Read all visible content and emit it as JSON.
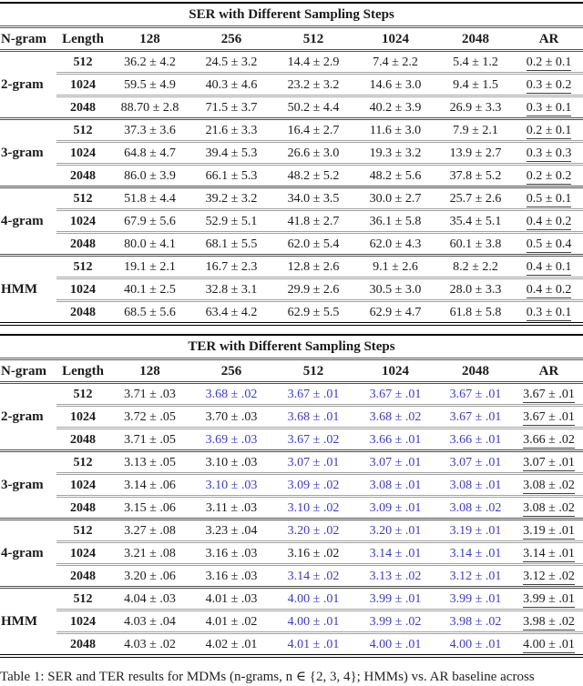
{
  "colors": {
    "highlight_blue": "#3a3ac8",
    "text": "#1b1b1b"
  },
  "caption": "Table 1: SER and TER results for MDMs (n-grams, n ∈ {2, 3, 4}; HMMs) vs. AR baseline across",
  "tables": [
    {
      "title": "SER with Different Sampling Steps",
      "columns": [
        "N-gram",
        "Length",
        "128",
        "256",
        "512",
        "1024",
        "2048",
        "AR"
      ],
      "groups": [
        {
          "label": "2-gram",
          "rows": [
            {
              "len": "512",
              "values": [
                "36.2 ± 4.2",
                "24.5 ± 3.2",
                "14.4 ± 2.9",
                "7.4 ± 2.2",
                "5.4 ± 1.2"
              ],
              "hl": [
                0,
                0,
                0,
                0,
                0
              ],
              "ar": "0.2 ± 0.1"
            },
            {
              "len": "1024",
              "values": [
                "59.5 ± 4.9",
                "40.3 ± 4.6",
                "23.2 ± 3.2",
                "14.6 ± 3.0",
                "9.4 ± 1.5"
              ],
              "hl": [
                0,
                0,
                0,
                0,
                0
              ],
              "ar": "0.3 ± 0.2"
            },
            {
              "len": "2048",
              "values": [
                "88.70 ± 2.8",
                "71.5 ± 3.7",
                "50.2 ± 4.4",
                "40.2 ± 3.9",
                "26.9 ± 3.3"
              ],
              "hl": [
                0,
                0,
                0,
                0,
                0
              ],
              "ar": "0.3 ± 0.1"
            }
          ]
        },
        {
          "label": "3-gram",
          "rows": [
            {
              "len": "512",
              "values": [
                "37.3 ± 3.6",
                "21.6 ± 3.3",
                "16.4 ± 2.7",
                "11.6 ± 3.0",
                "7.9 ± 2.1"
              ],
              "hl": [
                0,
                0,
                0,
                0,
                0
              ],
              "ar": "0.2 ± 0.1"
            },
            {
              "len": "1024",
              "values": [
                "64.8 ± 4.7",
                "39.4 ± 5.3",
                "26.6 ± 3.0",
                "19.3 ± 3.2",
                "13.9 ± 2.7"
              ],
              "hl": [
                0,
                0,
                0,
                0,
                0
              ],
              "ar": "0.3 ± 0.3"
            },
            {
              "len": "2048",
              "values": [
                "86.0 ± 3.9",
                "66.1 ± 5.3",
                "48.2 ± 5.2",
                "48.2 ± 5.6",
                "37.8 ± 5.2"
              ],
              "hl": [
                0,
                0,
                0,
                0,
                0
              ],
              "ar": "0.2 ± 0.2"
            }
          ]
        },
        {
          "label": "4-gram",
          "rows": [
            {
              "len": "512",
              "values": [
                "51.8 ± 4.4",
                "39.2 ± 3.2",
                "34.0 ± 3.5",
                "30.0 ± 2.7",
                "25.7 ± 2.6"
              ],
              "hl": [
                0,
                0,
                0,
                0,
                0
              ],
              "ar": "0.5 ± 0.1"
            },
            {
              "len": "1024",
              "values": [
                "67.9 ± 5.6",
                "52.9 ± 5.1",
                "41.8 ± 2.7",
                "36.1 ± 5.8",
                "35.4 ± 5.1"
              ],
              "hl": [
                0,
                0,
                0,
                0,
                0
              ],
              "ar": "0.4 ± 0.2"
            },
            {
              "len": "2048",
              "values": [
                "80.0 ± 4.1",
                "68.1 ± 5.5",
                "62.0 ± 5.4",
                "62.0 ± 4.3",
                "60.1 ± 3.8"
              ],
              "hl": [
                0,
                0,
                0,
                0,
                0
              ],
              "ar": "0.5 ± 0.4"
            }
          ]
        },
        {
          "label": "HMM",
          "rows": [
            {
              "len": "512",
              "values": [
                "19.1 ± 2.1",
                "16.7 ± 2.3",
                "12.8 ± 2.6",
                "9.1 ± 2.6",
                "8.2 ± 2.2"
              ],
              "hl": [
                0,
                0,
                0,
                0,
                0
              ],
              "ar": "0.4 ± 0.1"
            },
            {
              "len": "1024",
              "values": [
                "40.1 ± 2.5",
                "32.8 ± 3.1",
                "29.9 ± 2.6",
                "30.5 ± 3.0",
                "28.0 ± 3.3"
              ],
              "hl": [
                0,
                0,
                0,
                0,
                0
              ],
              "ar": "0.4 ± 0.2"
            },
            {
              "len": "2048",
              "values": [
                "68.5 ± 5.6",
                "63.4 ± 4.2",
                "62.9 ± 5.5",
                "62.9 ± 4.7",
                "61.8 ± 5.8"
              ],
              "hl": [
                0,
                0,
                0,
                0,
                0
              ],
              "ar": "0.3 ± 0.1"
            }
          ]
        }
      ]
    },
    {
      "title": "TER with Different Sampling Steps",
      "columns": [
        "N-gram",
        "Length",
        "128",
        "256",
        "512",
        "1024",
        "2048",
        "AR"
      ],
      "groups": [
        {
          "label": "2-gram",
          "rows": [
            {
              "len": "512",
              "values": [
                "3.71 ± .03",
                "3.68 ± .02",
                "3.67 ± .01",
                "3.67 ± .01",
                "3.67 ± .01"
              ],
              "hl": [
                0,
                1,
                1,
                1,
                1
              ],
              "ar": "3.67 ± .01"
            },
            {
              "len": "1024",
              "values": [
                "3.72 ± .05",
                "3.70 ± .03",
                "3.68 ± .01",
                "3.68 ± .02",
                "3.67 ± .01"
              ],
              "hl": [
                0,
                0,
                1,
                1,
                1
              ],
              "ar": "3.67 ± .01"
            },
            {
              "len": "2048",
              "values": [
                "3.71 ± .05",
                "3.69 ± .03",
                "3.67 ± .02",
                "3.66 ± .01",
                "3.66 ± .01"
              ],
              "hl": [
                0,
                1,
                1,
                1,
                1
              ],
              "ar": "3.66 ± .02"
            }
          ]
        },
        {
          "label": "3-gram",
          "rows": [
            {
              "len": "512",
              "values": [
                "3.13 ± .05",
                "3.10 ± .03",
                "3.07 ± .01",
                "3.07 ± .01",
                "3.07 ± .01"
              ],
              "hl": [
                0,
                0,
                1,
                1,
                1
              ],
              "ar": "3.07 ± .01"
            },
            {
              "len": "1024",
              "values": [
                "3.14 ± .06",
                "3.10 ± .03",
                "3.09 ± .02",
                "3.08 ± .01",
                "3.08 ± .01"
              ],
              "hl": [
                0,
                1,
                1,
                1,
                1
              ],
              "ar": "3.08 ± .02"
            },
            {
              "len": "2048",
              "values": [
                "3.15 ± .06",
                "3.11 ± .03",
                "3.10 ± .02",
                "3.09 ± .01",
                "3.08 ± .02"
              ],
              "hl": [
                0,
                0,
                1,
                1,
                1
              ],
              "ar": "3.08 ± .02"
            }
          ]
        },
        {
          "label": "4-gram",
          "rows": [
            {
              "len": "512",
              "values": [
                "3.27 ± .08",
                "3.23 ± .04",
                "3.20 ± .02",
                "3.20 ± .01",
                "3.19 ± .01"
              ],
              "hl": [
                0,
                0,
                1,
                1,
                1
              ],
              "ar": "3.19 ± .01"
            },
            {
              "len": "1024",
              "values": [
                "3.21 ± .08",
                "3.16 ± .03",
                "3.16 ± .02",
                "3.14 ± .01",
                "3.14 ± .01"
              ],
              "hl": [
                0,
                0,
                0,
                1,
                1
              ],
              "ar": "3.14 ± .01"
            },
            {
              "len": "2048",
              "values": [
                "3.20 ± .06",
                "3.16 ± .03",
                "3.14 ± .02",
                "3.13 ± .02",
                "3.12 ± .01"
              ],
              "hl": [
                0,
                0,
                1,
                1,
                1
              ],
              "ar": "3.12 ± .02"
            }
          ]
        },
        {
          "label": "HMM",
          "rows": [
            {
              "len": "512",
              "values": [
                "4.04 ± .03",
                "4.01 ± .03",
                "4.00 ± .01",
                "3.99 ± .01",
                "3.99 ± .01"
              ],
              "hl": [
                0,
                0,
                1,
                1,
                1
              ],
              "ar": "3.99 ± .01"
            },
            {
              "len": "1024",
              "values": [
                "4.03 ± .04",
                "4.01 ± .02",
                "4.00 ± .01",
                "3.99 ± .02",
                "3.98 ± .02"
              ],
              "hl": [
                0,
                0,
                1,
                1,
                1
              ],
              "ar": "3.98 ± .02"
            },
            {
              "len": "2048",
              "values": [
                "4.03 ± .02",
                "4.02 ± .01",
                "4.01 ± .01",
                "4.00 ± .01",
                "4.00 ± .01"
              ],
              "hl": [
                0,
                0,
                1,
                1,
                1
              ],
              "ar": "4.00 ± .01"
            }
          ]
        }
      ]
    }
  ]
}
